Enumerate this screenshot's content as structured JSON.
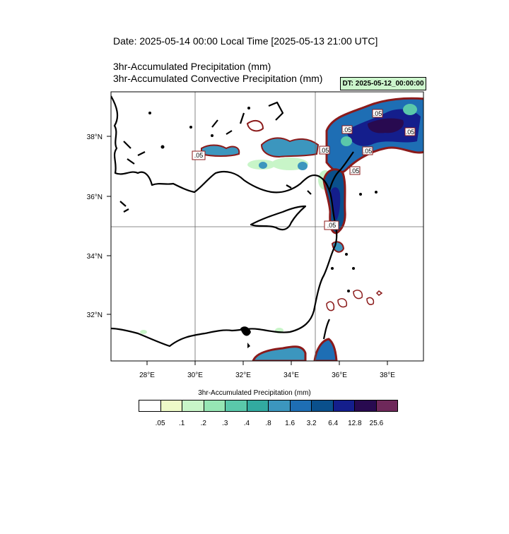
{
  "header": {
    "date_line": "Date: 2025-05-14  00:00 Local Time [2025-05-13  21:00 UTC]",
    "line1": "3hr-Accumulated Precipitation   (mm)",
    "line2": "3hr-Accumulated Convective Precipitation   (mm)",
    "dt_label": "DT: 2025-05-12_00:00:00",
    "dt_bg": "#ccf5cc"
  },
  "map": {
    "lon_labels": [
      "28°E",
      "30°E",
      "32°E",
      "34°E",
      "36°E",
      "38°E"
    ],
    "lat_labels": [
      "38°N",
      "36°N",
      "34°N",
      "32°N"
    ],
    "contour_labels": [
      ".05",
      ".05",
      ".05",
      ".05",
      ".05",
      ".05",
      ".05",
      ".05"
    ],
    "coast_color": "#000000",
    "contour_color": "#8b1a1a"
  },
  "colorbar": {
    "title": "3hr-Accumulated Precipitation  (mm)",
    "colors": [
      "#ffffff",
      "#eefac8",
      "#c8f5c8",
      "#96e6b4",
      "#5ac8aa",
      "#32aaa0",
      "#3c96be",
      "#1e6eb4",
      "#0a508c",
      "#141e8c",
      "#280a50",
      "#6e285a"
    ],
    "labels": [
      ".05",
      ".1",
      ".2",
      ".3",
      ".4",
      ".8",
      "1.6",
      "3.2",
      "6.4",
      "12.8",
      "25.6"
    ]
  }
}
